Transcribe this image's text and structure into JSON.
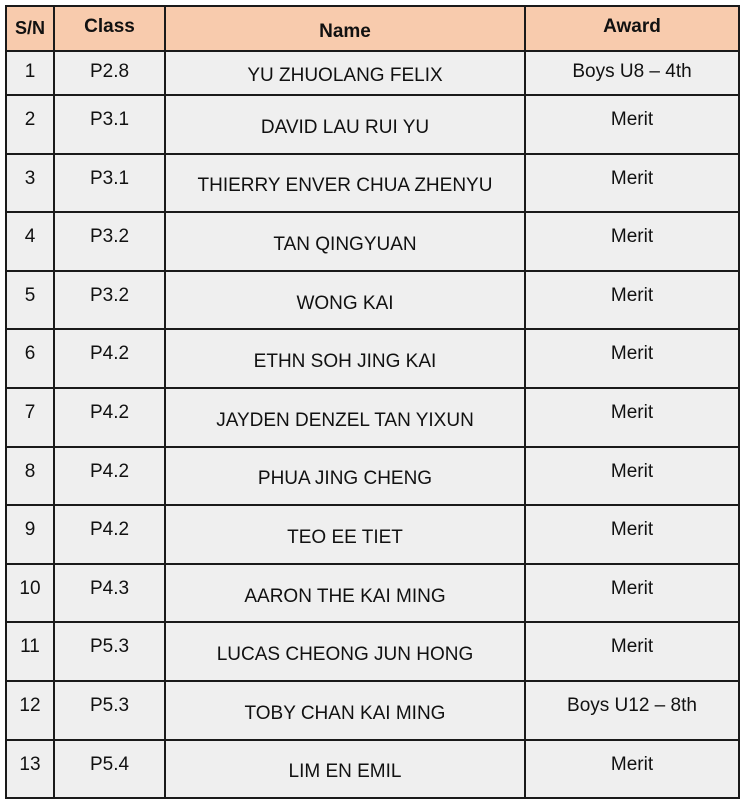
{
  "table": {
    "headers": {
      "sn": "S/N",
      "class": "Class",
      "name": "Name",
      "award": "Award"
    },
    "rows": [
      {
        "sn": "1",
        "class": "P2.8",
        "name": "YU ZHUOLANG FELIX",
        "award": "Boys U8 – 4th"
      },
      {
        "sn": "2",
        "class": "P3.1",
        "name": "DAVID LAU RUI YU",
        "award": "Merit"
      },
      {
        "sn": "3",
        "class": "P3.1",
        "name": "THIERRY ENVER CHUA ZHENYU",
        "award": "Merit"
      },
      {
        "sn": "4",
        "class": "P3.2",
        "name": "TAN QINGYUAN",
        "award": "Merit"
      },
      {
        "sn": "5",
        "class": "P3.2",
        "name": "WONG KAI",
        "award": "Merit"
      },
      {
        "sn": "6",
        "class": "P4.2",
        "name": "ETHN SOH JING KAI",
        "award": "Merit"
      },
      {
        "sn": "7",
        "class": "P4.2",
        "name": "JAYDEN DENZEL TAN YIXUN",
        "award": "Merit"
      },
      {
        "sn": "8",
        "class": "P4.2",
        "name": "PHUA JING CHENG",
        "award": "Merit"
      },
      {
        "sn": "9",
        "class": "P4.2",
        "name": "TEO EE TIET",
        "award": "Merit"
      },
      {
        "sn": "10",
        "class": "P4.3",
        "name": "AARON THE KAI MING",
        "award": "Merit"
      },
      {
        "sn": "11",
        "class": "P5.3",
        "name": "LUCAS CHEONG JUN HONG",
        "award": "Merit"
      },
      {
        "sn": "12",
        "class": "P5.3",
        "name": "TOBY CHAN KAI MING",
        "award": "Boys U12 – 8th"
      },
      {
        "sn": "13",
        "class": "P5.4",
        "name": "LIM EN EMIL",
        "award": "Merit"
      }
    ]
  },
  "colors": {
    "header_background": "#f8cbad",
    "row_background": "#efefef",
    "border": "#1a1a1a"
  }
}
